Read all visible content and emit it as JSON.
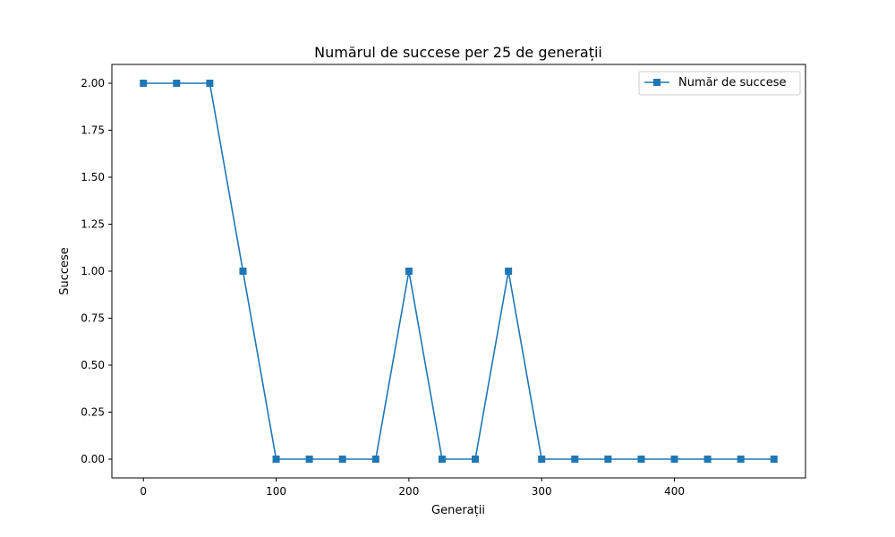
{
  "chart_data": {
    "type": "line",
    "title": "Numărul de succese per 25 de generații",
    "xlabel": "Generații",
    "ylabel": "Succese",
    "x": [
      0,
      25,
      50,
      75,
      100,
      125,
      150,
      175,
      200,
      225,
      250,
      275,
      300,
      325,
      350,
      375,
      400,
      425,
      450,
      475
    ],
    "series": [
      {
        "name": "Număr de succese",
        "values": [
          2,
          2,
          2,
          1,
          0,
          0,
          0,
          0,
          1,
          0,
          0,
          1,
          0,
          0,
          0,
          0,
          0,
          0,
          0,
          0
        ],
        "color": "#1f77b4",
        "marker": "square"
      }
    ],
    "xlim": [
      -23.75,
      498.75
    ],
    "ylim": [
      -0.1,
      2.1
    ],
    "xticks": [
      0,
      100,
      200,
      300,
      400
    ],
    "xtick_labels": [
      "0",
      "100",
      "200",
      "300",
      "400"
    ],
    "yticks": [
      0,
      0.25,
      0.5,
      0.75,
      1,
      1.25,
      1.5,
      1.75,
      2
    ],
    "ytick_labels": [
      "0.00",
      "0.25",
      "0.50",
      "0.75",
      "1.00",
      "1.25",
      "1.50",
      "1.75",
      "2.00"
    ],
    "grid": false,
    "legend_position": "top-right"
  }
}
